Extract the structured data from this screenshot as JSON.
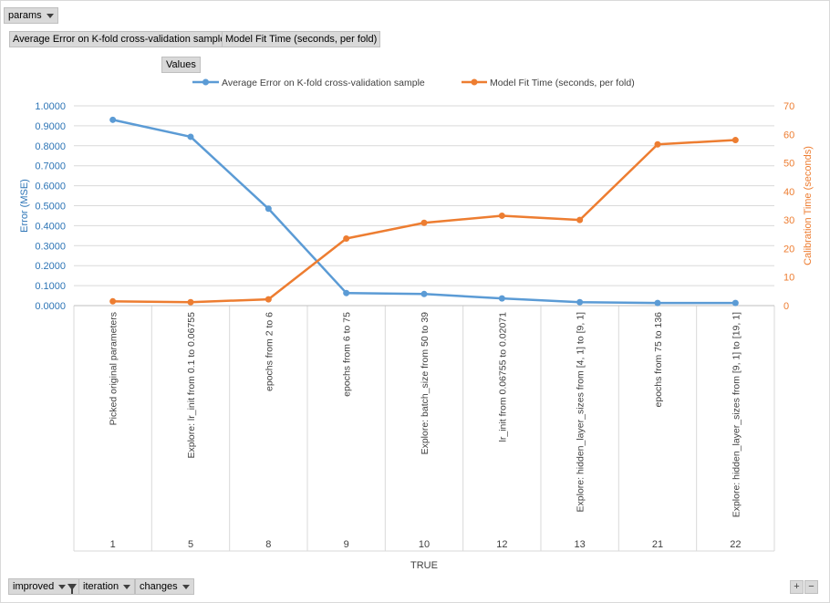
{
  "filters": {
    "params_label": "params",
    "series_buttons": [
      "Average Error on K-fold cross-validation sample",
      "Model Fit Time  (seconds, per fold)"
    ],
    "values_label": "Values",
    "bottom": [
      "improved",
      "iteration",
      "changes"
    ],
    "zoom_in": "+",
    "zoom_out": "−"
  },
  "colors": {
    "error": "#5b9bd5",
    "fit_time": "#ed7d31",
    "left_axis": "#2e75b6",
    "right_axis": "#ed7d31"
  },
  "chart_data": {
    "type": "line",
    "x_title": "TRUE",
    "iterations": [
      "1",
      "5",
      "8",
      "9",
      "10",
      "12",
      "13",
      "21",
      "22"
    ],
    "categories": [
      "Picked original parameters",
      "Explore: lr_init from 0.1 to 0.06755",
      "epochs from 2 to 6",
      "epochs from 6 to 75",
      "Explore: batch_size from 50 to 39",
      "lr_init from 0.06755 to 0.02071",
      "Explore: hidden_layer_sizes from [4, 1] to [9, 1]",
      "epochs from 75 to 136",
      "Explore: hidden_layer_sizes from [9, 1] to [19, 1]"
    ],
    "series": [
      {
        "name": "Average Error on K-fold cross-validation sample",
        "axis": "left",
        "values": [
          0.93,
          0.845,
          0.485,
          0.063,
          0.058,
          0.036,
          0.017,
          0.013,
          0.013
        ]
      },
      {
        "name": "Model Fit Time (seconds, per fold)",
        "axis": "right",
        "values": [
          1.5,
          1.2,
          2.2,
          23.5,
          29.0,
          31.5,
          30.0,
          56.5,
          58.0
        ]
      }
    ],
    "y_left": {
      "label": "Error (MSE)",
      "min": 0,
      "max": 1.0,
      "step": 0.1,
      "ticks": [
        "0.0000",
        "0.1000",
        "0.2000",
        "0.3000",
        "0.4000",
        "0.5000",
        "0.6000",
        "0.7000",
        "0.8000",
        "0.9000",
        "1.0000"
      ]
    },
    "y_right": {
      "label": "Calibration Time (seconds)",
      "min": 0,
      "max": 70,
      "step": 10,
      "ticks": [
        "0",
        "10",
        "20",
        "30",
        "40",
        "50",
        "60",
        "70"
      ]
    },
    "grid": true,
    "legend_position": "top"
  }
}
